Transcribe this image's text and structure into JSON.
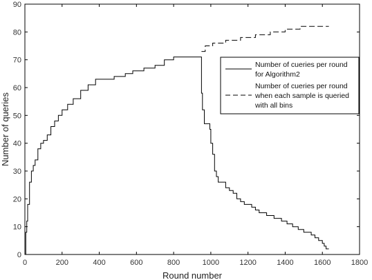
{
  "chart_data": {
    "type": "line",
    "xlabel": "Round number",
    "ylabel": "Number of queries",
    "xlim": [
      0,
      1800
    ],
    "ylim": [
      0,
      90
    ],
    "xticks": [
      "0",
      "200",
      "400",
      "600",
      "800",
      "1000",
      "1200",
      "1400",
      "1600",
      "1800"
    ],
    "yticks": [
      "0",
      "10",
      "20",
      "30",
      "40",
      "50",
      "60",
      "70",
      "80",
      "90"
    ],
    "grid": false,
    "legend_position": "right-center",
    "series": [
      {
        "name": "Number of cueries per round for Algorithm2",
        "style": "solid",
        "x": [
          0,
          5,
          10,
          15,
          25,
          35,
          45,
          55,
          70,
          85,
          100,
          120,
          140,
          160,
          180,
          200,
          230,
          260,
          300,
          340,
          380,
          420,
          480,
          540,
          580,
          640,
          700,
          750,
          800,
          850,
          900,
          945,
          950,
          955,
          965,
          980,
          995,
          1000,
          1010,
          1020,
          1030,
          1040,
          1060,
          1080,
          1100,
          1120,
          1140,
          1160,
          1180,
          1200,
          1220,
          1240,
          1260,
          1300,
          1340,
          1380,
          1410,
          1440,
          1470,
          1500,
          1540,
          1560,
          1580,
          1600,
          1610,
          1620,
          1635
        ],
        "y": [
          0,
          8,
          12,
          18,
          26,
          30,
          32,
          34,
          38,
          40,
          41,
          43,
          46,
          48,
          50,
          52,
          54,
          56,
          59,
          61,
          63,
          63,
          64,
          65,
          66,
          67,
          68,
          70,
          71,
          71,
          71,
          71,
          58,
          52,
          47,
          47,
          45,
          40,
          36,
          30,
          28,
          26,
          26,
          24,
          23,
          22,
          20,
          19,
          18,
          18,
          17,
          16,
          15,
          14,
          13,
          12,
          11,
          10,
          9,
          8,
          7,
          6,
          5,
          4,
          3,
          2,
          2
        ]
      },
      {
        "name": "Number of cueries per round when each sample is queried with all bins",
        "style": "dashed",
        "x": [
          950,
          970,
          990,
          1010,
          1040,
          1080,
          1120,
          1160,
          1200,
          1240,
          1280,
          1320,
          1360,
          1400,
          1440,
          1480,
          1520,
          1560,
          1600,
          1635
        ],
        "y": [
          73,
          75,
          75,
          76,
          76,
          77,
          77,
          78,
          78,
          79,
          79,
          80,
          80,
          81,
          81,
          82,
          82,
          82,
          82,
          82
        ]
      }
    ]
  },
  "legend": {
    "line1": "Number of cueries per round",
    "line2": "for Algorithm2",
    "line3": "Number of cueries per round",
    "line4": "when each sample is queried",
    "line5": "with all bins"
  }
}
